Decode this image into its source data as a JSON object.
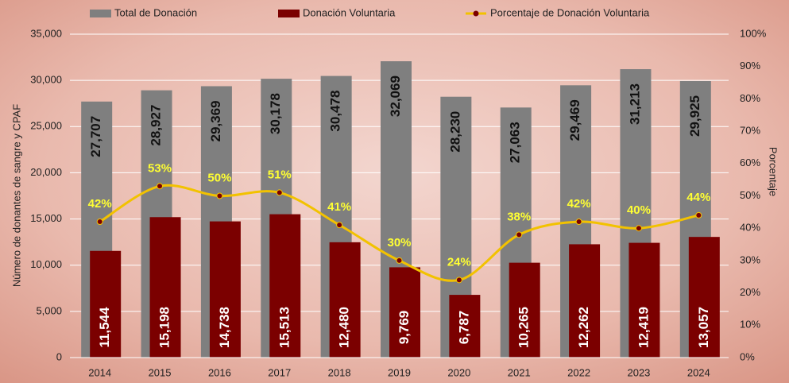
{
  "chart_data": {
    "type": "bar",
    "y_label": "Número de donantes de sangre y CPAF",
    "y2_label": "Porcentaje",
    "categories": [
      "2014",
      "2015",
      "2016",
      "2017",
      "2018",
      "2019",
      "2020",
      "2021",
      "2022",
      "2023",
      "2024"
    ],
    "series": [
      {
        "name": "Total de Donación",
        "type": "bar",
        "color": "#7f7f7f",
        "values": [
          27707,
          28927,
          29369,
          30178,
          30478,
          32069,
          28230,
          27063,
          29469,
          31213,
          29925
        ],
        "value_labels": [
          "27,707",
          "28,927",
          "29,369",
          "30,178",
          "30,478",
          "32,069",
          "28,230",
          "27,063",
          "29,469",
          "31,213",
          "29,925"
        ]
      },
      {
        "name": "Donación Voluntaria",
        "type": "bar",
        "color": "#7b0000",
        "values": [
          11544,
          15198,
          14738,
          15513,
          12480,
          9769,
          6787,
          10265,
          12262,
          12419,
          13057
        ],
        "value_labels": [
          "11,544",
          "15,198",
          "14,738",
          "15,513",
          "12,480",
          "9,769",
          "6,787",
          "10,265",
          "12,262",
          "12,419",
          "13,057"
        ]
      },
      {
        "name": "Porcentaje de Donación Voluntaria",
        "type": "line",
        "axis": "y2",
        "color": "#f2c200",
        "marker_color": "#7b0000",
        "values": [
          42,
          53,
          50,
          51,
          41,
          30,
          24,
          38,
          42,
          40,
          44
        ],
        "value_labels": [
          "42%",
          "53%",
          "50%",
          "51%",
          "41%",
          "30%",
          "24%",
          "38%",
          "42%",
          "40%",
          "44%"
        ]
      }
    ],
    "ylim": [
      0,
      35000
    ],
    "yticks": [
      {
        "value": 0,
        "label": "0"
      },
      {
        "value": 5000,
        "label": "5,000"
      },
      {
        "value": 10000,
        "label": "10,000"
      },
      {
        "value": 15000,
        "label": "15,000"
      },
      {
        "value": 20000,
        "label": "20,000"
      },
      {
        "value": 25000,
        "label": "25,000"
      },
      {
        "value": 30000,
        "label": "30,000"
      },
      {
        "value": 35000,
        "label": "35,000"
      }
    ],
    "y2lim": [
      0,
      100
    ],
    "y2ticks": [
      {
        "value": 0,
        "label": "0%"
      },
      {
        "value": 10,
        "label": "10%"
      },
      {
        "value": 20,
        "label": "20%"
      },
      {
        "value": 30,
        "label": "30%"
      },
      {
        "value": 40,
        "label": "40%"
      },
      {
        "value": 50,
        "label": "50%"
      },
      {
        "value": 60,
        "label": "60%"
      },
      {
        "value": 70,
        "label": "70%"
      },
      {
        "value": 80,
        "label": "80%"
      },
      {
        "value": 90,
        "label": "90%"
      },
      {
        "value": 100,
        "label": "100%"
      }
    ],
    "grid": true,
    "legend": "top"
  }
}
